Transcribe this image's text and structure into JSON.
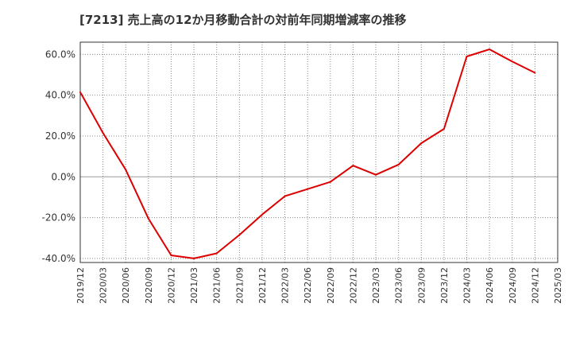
{
  "chart_data": {
    "type": "line",
    "title": "[7213]  売上高の12か月移動合計の対前年同期増減率の推移",
    "xlabel": "",
    "ylabel": "",
    "ylim": [
      -42,
      66
    ],
    "y_ticks": [
      60,
      40,
      20,
      0,
      -20,
      -40
    ],
    "y_tick_labels": [
      "60.0%",
      "40.0%",
      "20.0%",
      "0.0%",
      "-20.0%",
      "-40.0%"
    ],
    "x_tick_labels": [
      "2019/12",
      "2020/03",
      "2020/06",
      "2020/09",
      "2020/12",
      "2021/03",
      "2021/06",
      "2021/09",
      "2021/12",
      "2022/03",
      "2022/06",
      "2022/09",
      "2022/12",
      "2023/03",
      "2023/06",
      "2023/09",
      "2023/12",
      "2024/03",
      "2024/06",
      "2024/09",
      "2024/12",
      "2025/03"
    ],
    "grid": true,
    "series": [
      {
        "name": "対前年同期増減率",
        "color": "#dd0000",
        "x": [
          "2019/12",
          "2020/03",
          "2020/06",
          "2020/09",
          "2020/12",
          "2021/03",
          "2021/06",
          "2021/09",
          "2021/12",
          "2022/03",
          "2022/06",
          "2022/09",
          "2022/12",
          "2023/03",
          "2023/06",
          "2023/09",
          "2023/12",
          "2024/03",
          "2024/06",
          "2024/09",
          "2024/12"
        ],
        "values": [
          41.5,
          21.5,
          3.5,
          -20.5,
          -38.5,
          -40.0,
          -37.5,
          -28.5,
          -18.5,
          -9.5,
          -6.0,
          -2.5,
          5.5,
          1.0,
          6.0,
          16.5,
          23.5,
          59.0,
          62.5,
          56.5,
          51.0
        ]
      }
    ]
  }
}
